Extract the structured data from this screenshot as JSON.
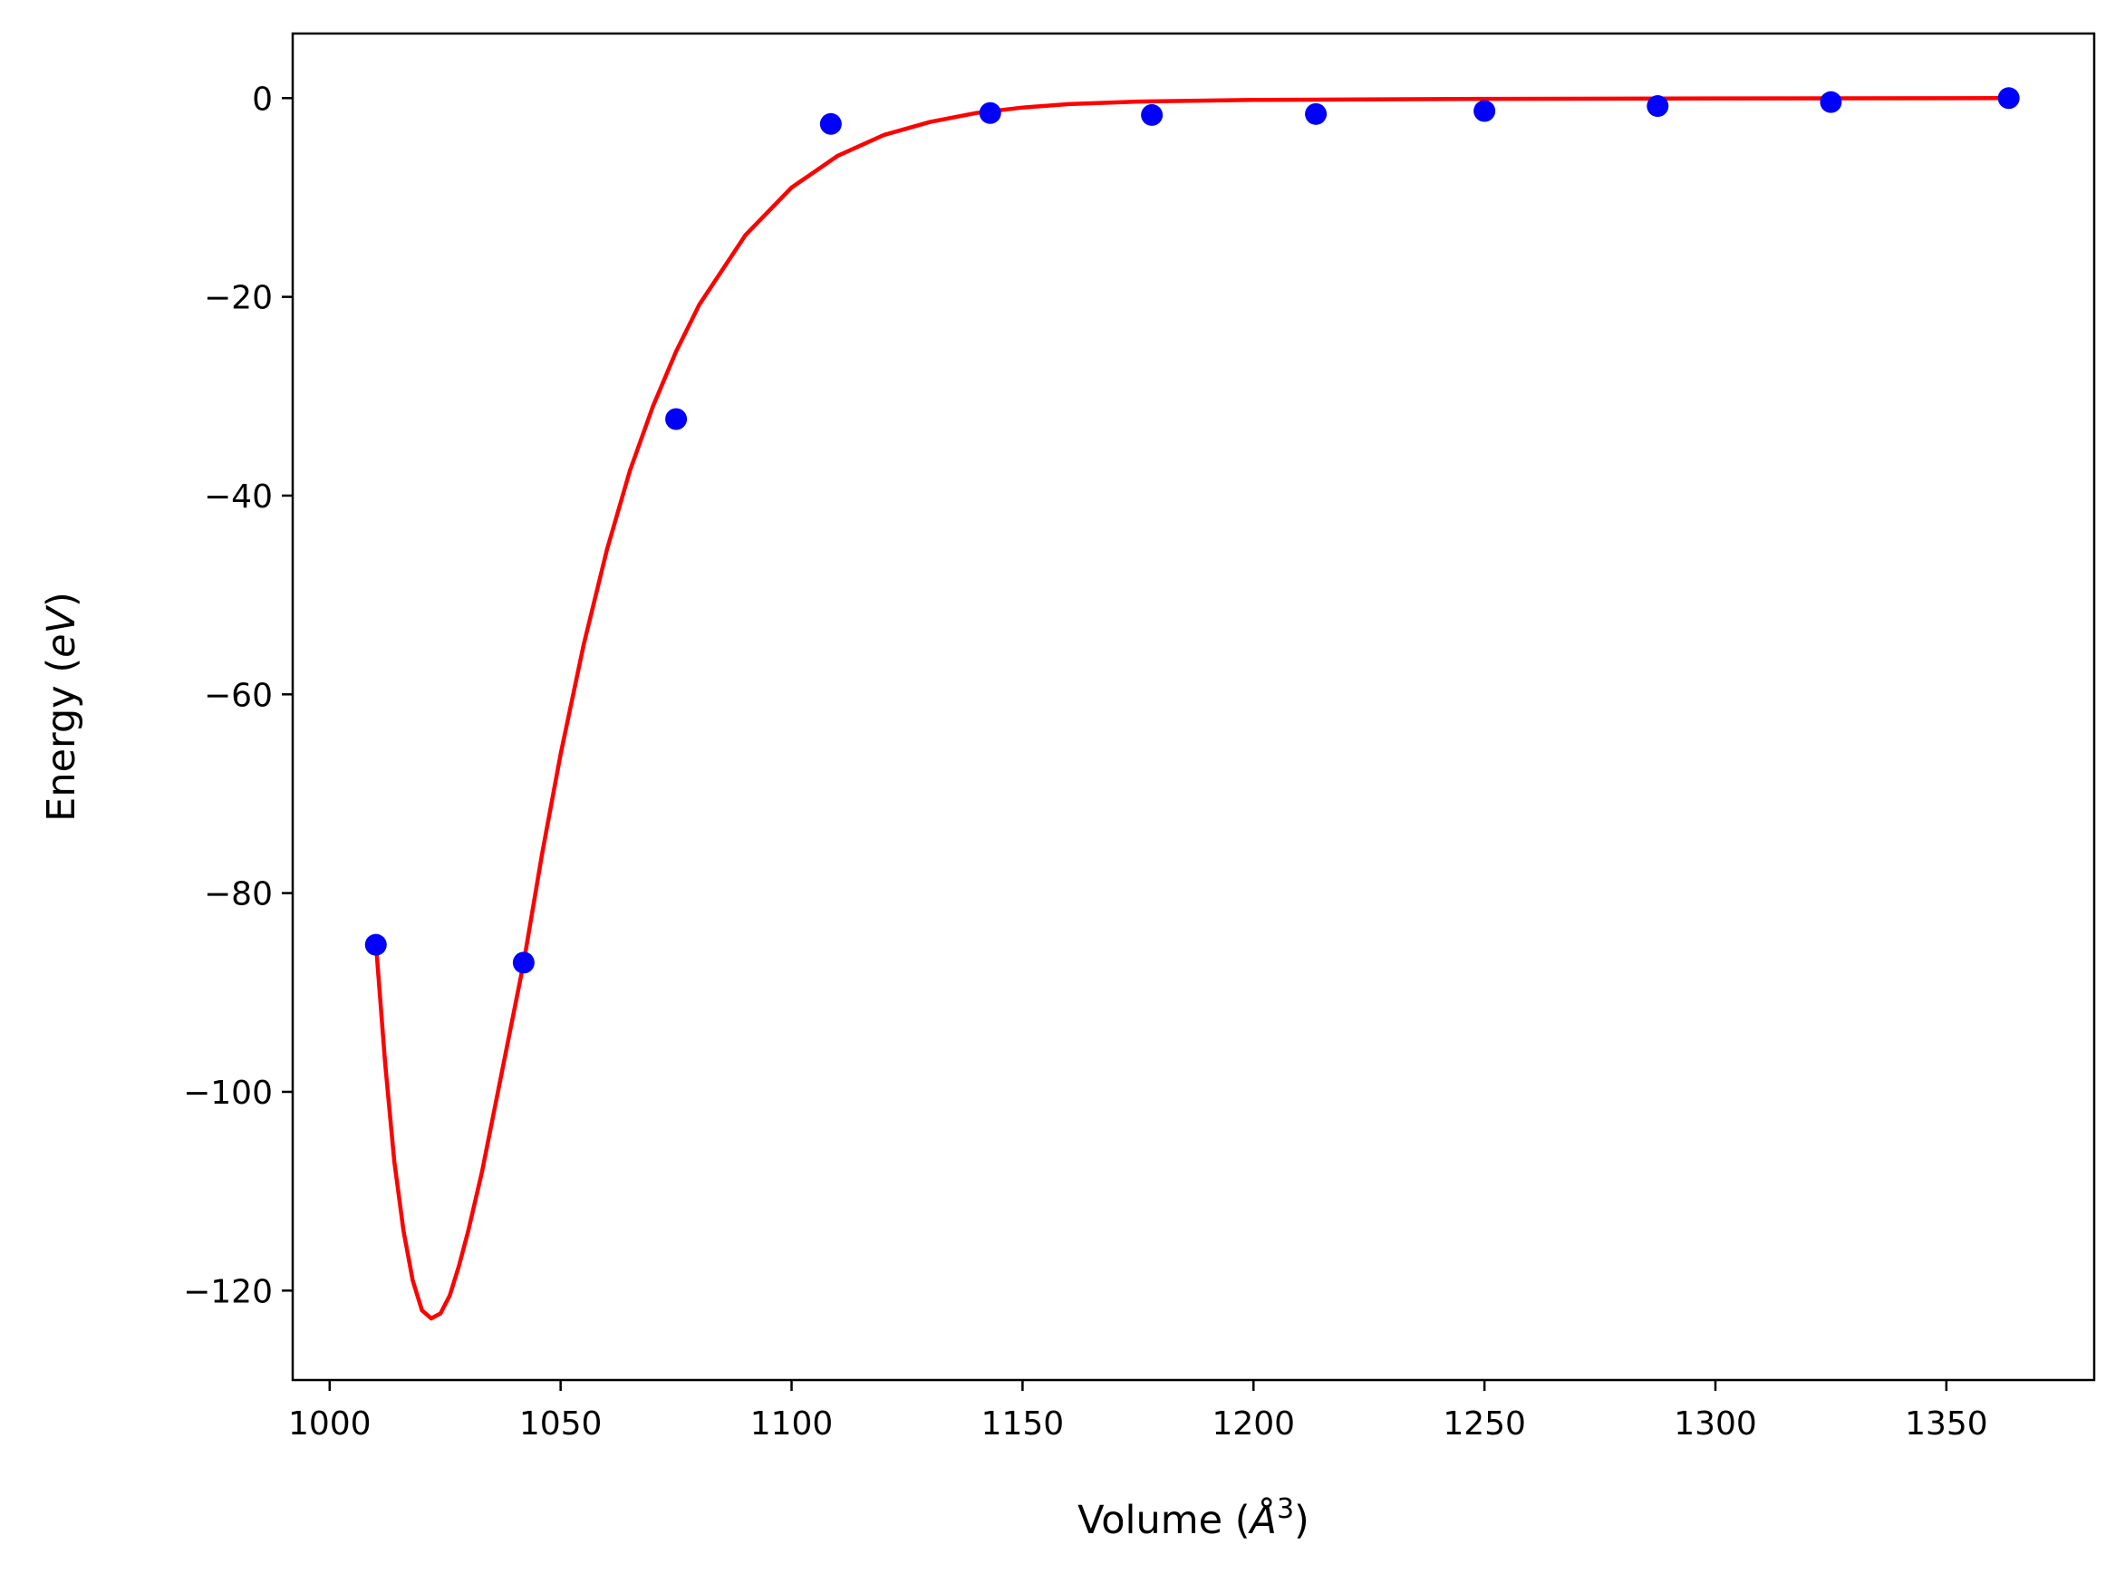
{
  "chart_data": {
    "type": "scatter",
    "xlabel": "Volume (Å³)",
    "xlabel_parts": {
      "prefix": "Volume (",
      "unit": "Å",
      "exponent": "3",
      "suffix": ")"
    },
    "ylabel": "Energy (eV)",
    "ylabel_parts": {
      "prefix": "Energy (",
      "unit": "eV",
      "suffix": ")"
    },
    "xlim": [
      992,
      1382
    ],
    "ylim": [
      -129,
      6.5
    ],
    "xticks": [
      1000,
      1050,
      1100,
      1150,
      1200,
      1250,
      1300,
      1350
    ],
    "yticks": [
      0,
      -20,
      -40,
      -60,
      -80,
      -100,
      -120
    ],
    "grid": false,
    "series": [
      {
        "kind": "points",
        "color": "#0000ff",
        "x": [
          1010,
          1042,
          1075,
          1108.5,
          1143,
          1178,
          1213.5,
          1250,
          1287.5,
          1325,
          1363.5
        ],
        "y": [
          -85.2,
          -87.0,
          -32.3,
          -2.6,
          -1.5,
          -1.7,
          -1.6,
          -1.3,
          -0.8,
          -0.4,
          0.0
        ]
      },
      {
        "kind": "line",
        "color": "#ff0000",
        "x": [
          1010,
          1012,
          1014,
          1016,
          1018,
          1020,
          1022,
          1024,
          1026,
          1028,
          1030,
          1033,
          1036,
          1039,
          1042,
          1046,
          1050,
          1055,
          1060,
          1065,
          1070,
          1075,
          1080,
          1090,
          1100,
          1110,
          1120,
          1130,
          1140,
          1150,
          1160,
          1175,
          1200,
          1250,
          1300,
          1363
        ],
        "y": [
          -85,
          -97,
          -107,
          -114,
          -119,
          -122,
          -122.8,
          -122.3,
          -120.5,
          -117.5,
          -114,
          -108,
          -101,
          -94,
          -87,
          -76,
          -66,
          -55,
          -45.5,
          -37.5,
          -31,
          -25.5,
          -20.8,
          -13.8,
          -9.0,
          -5.8,
          -3.7,
          -2.4,
          -1.5,
          -0.95,
          -0.6,
          -0.35,
          -0.18,
          -0.07,
          -0.03,
          0
        ]
      }
    ]
  }
}
